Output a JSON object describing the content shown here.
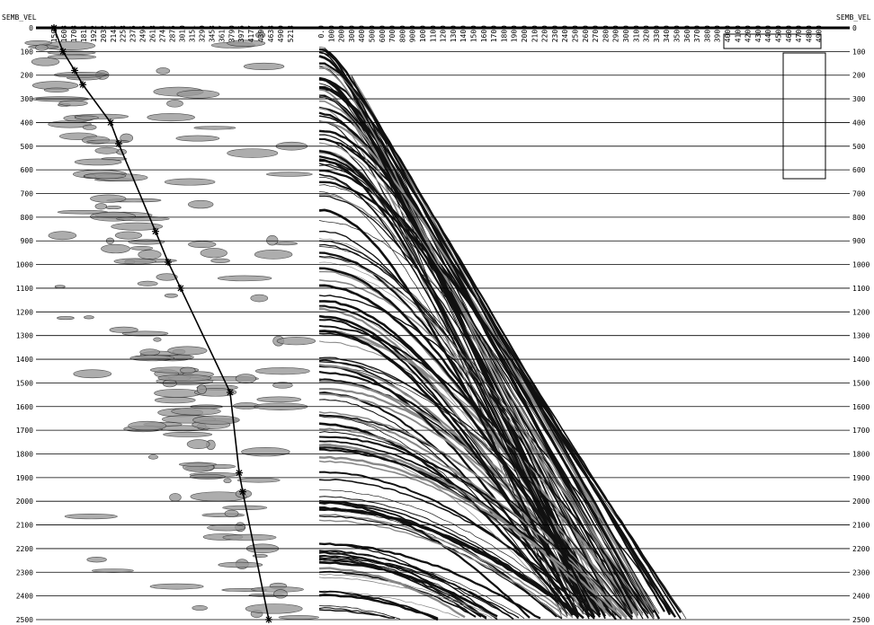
{
  "left_axis_title": "SEMB_VEL",
  "right_axis_title": "SEMB_VEL",
  "time_ticks": [
    0,
    100,
    200,
    300,
    400,
    500,
    600,
    700,
    800,
    900,
    1000,
    1100,
    1200,
    1300,
    1400,
    1500,
    1600,
    1700,
    1800,
    1900,
    2000,
    2100,
    2200,
    2300,
    2400,
    2500
  ],
  "velocity_ticks": [
    1500,
    1603,
    1708,
    1814,
    1922,
    2032,
    2144,
    2258,
    2375,
    2495,
    2618,
    2744,
    2875,
    3010,
    3151,
    3299,
    3453,
    3617,
    3790,
    3976,
    4177,
    4396,
    4638,
    4909,
    5218
  ],
  "offset_ticks": [
    "0.0",
    "1000",
    "2000",
    "3000",
    "4000",
    "5000",
    "6000",
    "7000",
    "8000",
    "9000",
    "1000",
    "1100",
    "1200",
    "1300",
    "1400",
    "1500",
    "1600",
    "1700",
    "1800",
    "1900",
    "2000",
    "2100",
    "2200",
    "2300",
    "2400",
    "2500",
    "2600",
    "2700",
    "2800",
    "2900",
    "3000",
    "3100",
    "3200",
    "3300",
    "3400",
    "3500",
    "3600",
    "3700",
    "3800",
    "3900",
    "4000",
    "4100",
    "4200",
    "4300",
    "4400",
    "4500",
    "4600",
    "4700",
    "4800",
    "4900"
  ],
  "picks": [
    {
      "time": 0,
      "velocity": 1500
    },
    {
      "time": 100,
      "velocity": 1594
    },
    {
      "time": 180,
      "velocity": 1719
    },
    {
      "time": 240,
      "velocity": 1806
    },
    {
      "time": 400,
      "velocity": 2116
    },
    {
      "time": 490,
      "velocity": 2209
    },
    {
      "time": 860,
      "velocity": 2657
    },
    {
      "time": 990,
      "velocity": 2821
    },
    {
      "time": 1100,
      "velocity": 2991
    },
    {
      "time": 1540,
      "velocity": 3769
    },
    {
      "time": 1880,
      "velocity": 3939
    },
    {
      "time": 1960,
      "velocity": 4008
    },
    {
      "time": 2500,
      "velocity": 4590
    }
  ]
}
